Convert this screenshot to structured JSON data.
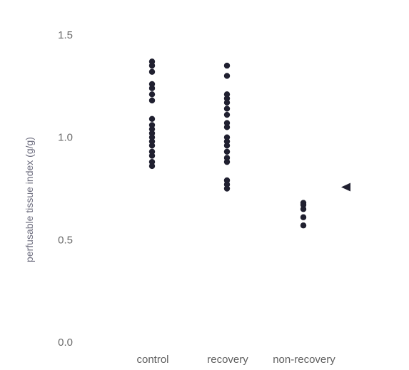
{
  "chart_data": {
    "type": "scatter",
    "ylabel": "perfusable tissue index (g/g)",
    "ylim": [
      0,
      1.5
    ],
    "yticks": [
      {
        "value": 0.0,
        "label": "0.0"
      },
      {
        "value": 0.5,
        "label": "0.5"
      },
      {
        "value": 1.0,
        "label": "1.0"
      },
      {
        "value": 1.5,
        "label": "1.5"
      }
    ],
    "categories": [
      "control",
      "recovery",
      "non-recovery"
    ],
    "grid": false,
    "series": [
      {
        "values": [
          [
            1.37,
            1.35,
            1.32,
            1.26,
            1.24,
            1.21,
            1.18,
            1.09,
            1.06,
            1.04,
            1.02,
            1.0,
            0.98,
            0.96,
            0.93,
            0.91,
            0.88,
            0.86
          ],
          [
            1.35,
            1.3,
            1.21,
            1.19,
            1.17,
            1.14,
            1.11,
            1.07,
            1.05,
            1.0,
            0.98,
            0.96,
            0.93,
            0.9,
            0.88,
            0.79,
            0.77,
            0.75
          ],
          [
            0.68,
            0.67,
            0.65,
            0.61,
            0.57
          ]
        ],
        "color": "#202030"
      }
    ],
    "annotations": [
      {
        "category": "non-recovery",
        "value": 0.75,
        "shape": "left-pointing-triangle"
      }
    ]
  }
}
